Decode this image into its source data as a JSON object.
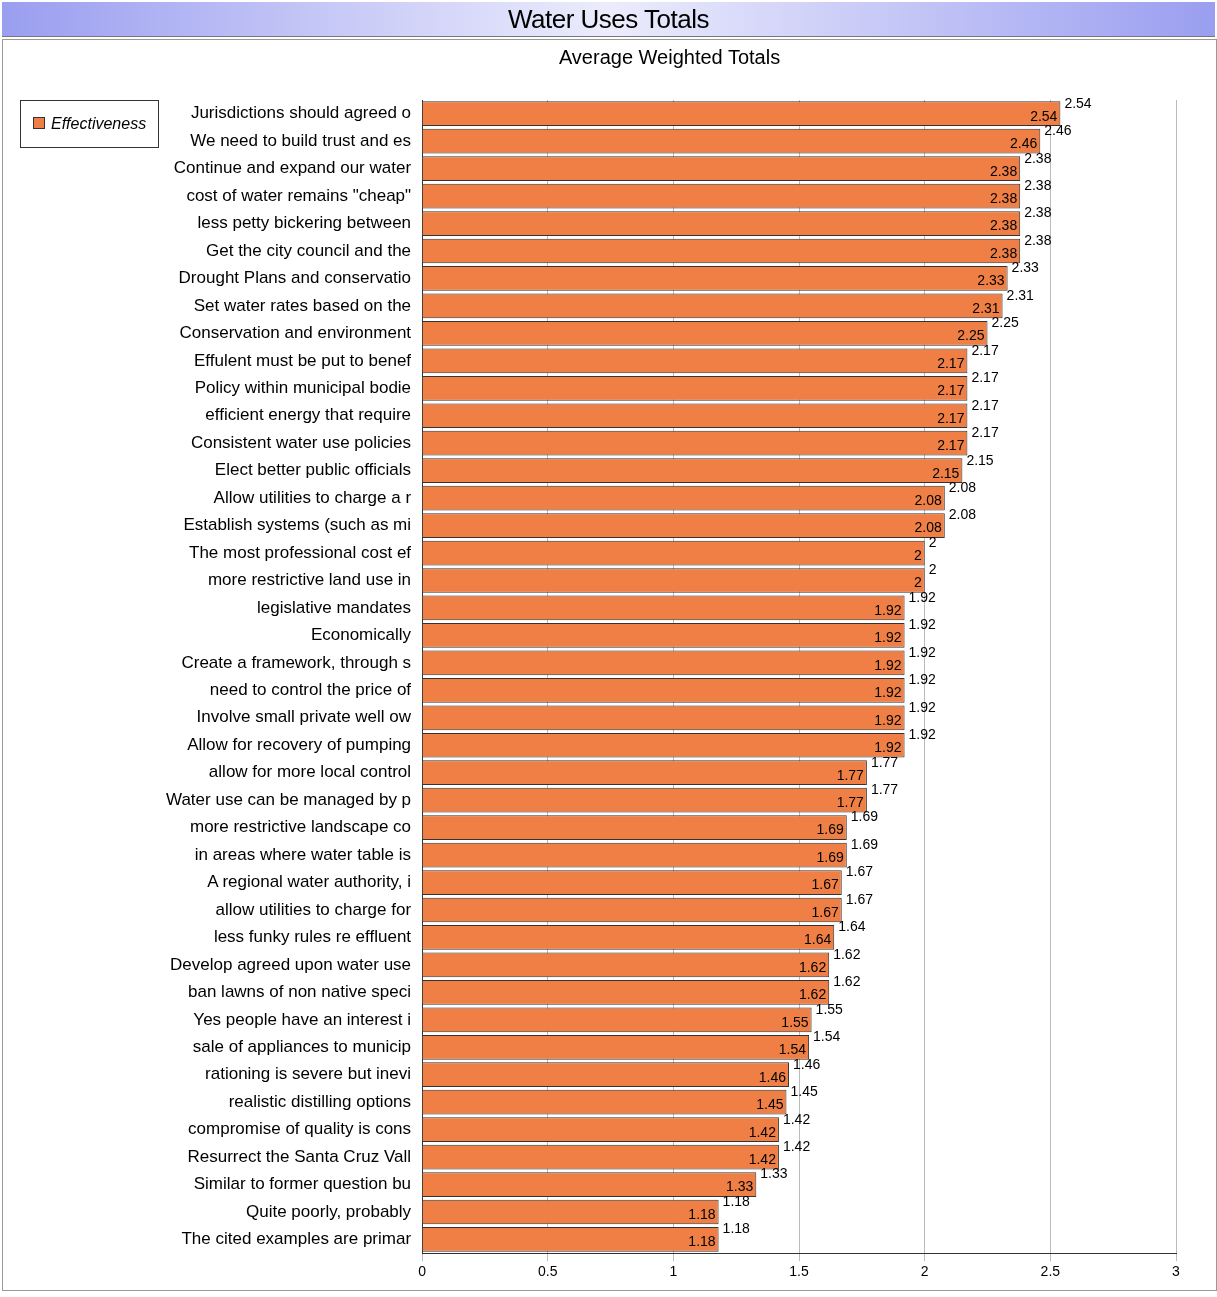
{
  "chart_data": {
    "type": "bar",
    "orientation": "horizontal",
    "title": "Water Uses Totals",
    "subtitle": "Average Weighted Totals",
    "categories": [
      "Jurisdictions should agreed o",
      "We need to build trust and es",
      "Continue and expand our water",
      "cost of water remains \"cheap\"",
      "less petty bickering between",
      "Get the city council and the",
      "Drought Plans and conservatio",
      "Set water rates based on the",
      "Conservation and environment",
      "Effulent must be put to benef",
      "Policy within municipal bodie",
      "efficient energy that require",
      "Consistent water use policies",
      "Elect better public officials",
      "Allow utilities to charge a r",
      "Establish systems (such as mi",
      "The most professional cost ef",
      "more restrictive land use in",
      "legislative mandates",
      "Economically",
      "Create a framework, through s",
      "need to control the price of",
      "Involve small private well ow",
      "Allow for recovery of pumping",
      "allow for more local control",
      "Water use can be managed by p",
      "more restrictive landscape co",
      "in areas where water table is",
      "A regional water authority, i",
      "allow utilities to charge for",
      "less funky rules re effluent",
      "Develop agreed upon water use",
      "ban lawns of non native speci",
      "Yes people have an interest i",
      "sale of appliances to municip",
      "rationing is severe but inevi",
      "realistic distilling options",
      "compromise of quality is cons",
      "Resurrect the Santa Cruz Vall",
      "Similar to former question bu",
      "Quite poorly, probably",
      "The cited examples are primar"
    ],
    "series": [
      {
        "name": "Effectiveness",
        "color": "#ef7f45",
        "values": [
          2.54,
          2.46,
          2.38,
          2.38,
          2.38,
          2.38,
          2.33,
          2.31,
          2.25,
          2.17,
          2.17,
          2.17,
          2.17,
          2.15,
          2.08,
          2.08,
          2,
          2,
          1.92,
          1.92,
          1.92,
          1.92,
          1.92,
          1.92,
          1.77,
          1.77,
          1.69,
          1.69,
          1.67,
          1.67,
          1.64,
          1.62,
          1.62,
          1.55,
          1.54,
          1.46,
          1.45,
          1.42,
          1.42,
          1.33,
          1.18,
          1.18
        ]
      }
    ],
    "annotations": [
      {
        "text": "2.54",
        "x": 2.54,
        "y": "Jurisdictions should agreed o"
      },
      {
        "text": "2.46",
        "x": 2.46,
        "y": "We need to build trust and es"
      },
      {
        "text": "2.38",
        "x": 2.38,
        "y": "Continue and expand our water"
      },
      {
        "text": "2.38",
        "x": 2.38,
        "y": "cost of water remains \"cheap\""
      },
      {
        "text": "2.38",
        "x": 2.38,
        "y": "less petty bickering between"
      },
      {
        "text": "2.38",
        "x": 2.38,
        "y": "Get the city council and the"
      },
      {
        "text": "2.33",
        "x": 2.33,
        "y": "Drought Plans and conservatio"
      },
      {
        "text": "2.31",
        "x": 2.31,
        "y": "Set water rates based on the"
      },
      {
        "text": "2.25",
        "x": 2.25,
        "y": "Conservation and environment"
      },
      {
        "text": "2.17",
        "x": 2.17,
        "y": "Effulent must be put to benef"
      },
      {
        "text": "2.17",
        "x": 2.17,
        "y": "Policy within municipal bodie"
      },
      {
        "text": "2.17",
        "x": 2.17,
        "y": "efficient energy that require"
      },
      {
        "text": "2.17",
        "x": 2.17,
        "y": "Consistent water use policies"
      },
      {
        "text": "2.15",
        "x": 2.15,
        "y": "Elect better public officials"
      },
      {
        "text": "2.08",
        "x": 2.08,
        "y": "Allow utilities to charge a r"
      },
      {
        "text": "2.08",
        "x": 2.08,
        "y": "Establish systems (such as mi"
      },
      {
        "text": "2",
        "x": 2,
        "y": "The most professional cost ef"
      },
      {
        "text": "2",
        "x": 2,
        "y": "more restrictive land use in"
      },
      {
        "text": "1.92",
        "x": 1.92,
        "y": "legislative mandates"
      },
      {
        "text": "1.92",
        "x": 1.92,
        "y": "Economically"
      },
      {
        "text": "1.92",
        "x": 1.92,
        "y": "Create a framework, through s"
      },
      {
        "text": "1.92",
        "x": 1.92,
        "y": "need to control the price of"
      },
      {
        "text": "1.92",
        "x": 1.92,
        "y": "Involve small private well ow"
      },
      {
        "text": "1.92",
        "x": 1.92,
        "y": "Allow for recovery of pumping"
      },
      {
        "text": "1.77",
        "x": 1.77,
        "y": "allow for more local control"
      },
      {
        "text": "1.77",
        "x": 1.77,
        "y": "Water use can be managed by p"
      },
      {
        "text": "1.69",
        "x": 1.69,
        "y": "more restrictive landscape co"
      },
      {
        "text": "1.69",
        "x": 1.69,
        "y": "in areas where water table is"
      },
      {
        "text": "1.67",
        "x": 1.67,
        "y": "A regional water authority, i"
      },
      {
        "text": "1.67",
        "x": 1.67,
        "y": "allow utilities to charge for"
      },
      {
        "text": "1.64",
        "x": 1.64,
        "y": "less funky rules re effluent"
      },
      {
        "text": "1.62",
        "x": 1.62,
        "y": "Develop agreed upon water use"
      },
      {
        "text": "1.62",
        "x": 1.62,
        "y": "ban lawns of non native speci"
      },
      {
        "text": "1.55",
        "x": 1.55,
        "y": "Yes people have an interest i"
      },
      {
        "text": "1.54",
        "x": 1.54,
        "y": "sale of appliances to municip"
      },
      {
        "text": "1.46",
        "x": 1.46,
        "y": "rationing is severe but inevi"
      },
      {
        "text": "1.45",
        "x": 1.45,
        "y": "realistic distilling options"
      },
      {
        "text": "1.42",
        "x": 1.42,
        "y": "compromise of quality is cons"
      },
      {
        "text": "1.42",
        "x": 1.42,
        "y": "Resurrect the Santa Cruz Vall"
      },
      {
        "text": "1.33",
        "x": 1.33,
        "y": "Similar to former question bu"
      },
      {
        "text": "1.18",
        "x": 1.18,
        "y": "Quite poorly, probably"
      },
      {
        "text": "1.18",
        "x": 1.18,
        "y": "The cited examples are primar"
      }
    ],
    "xlim": [
      0,
      3
    ],
    "xticks": [
      0,
      0.5,
      1,
      1.5,
      2,
      2.5,
      3
    ],
    "grid": "x",
    "legend": "top left",
    "data_labels": true
  }
}
